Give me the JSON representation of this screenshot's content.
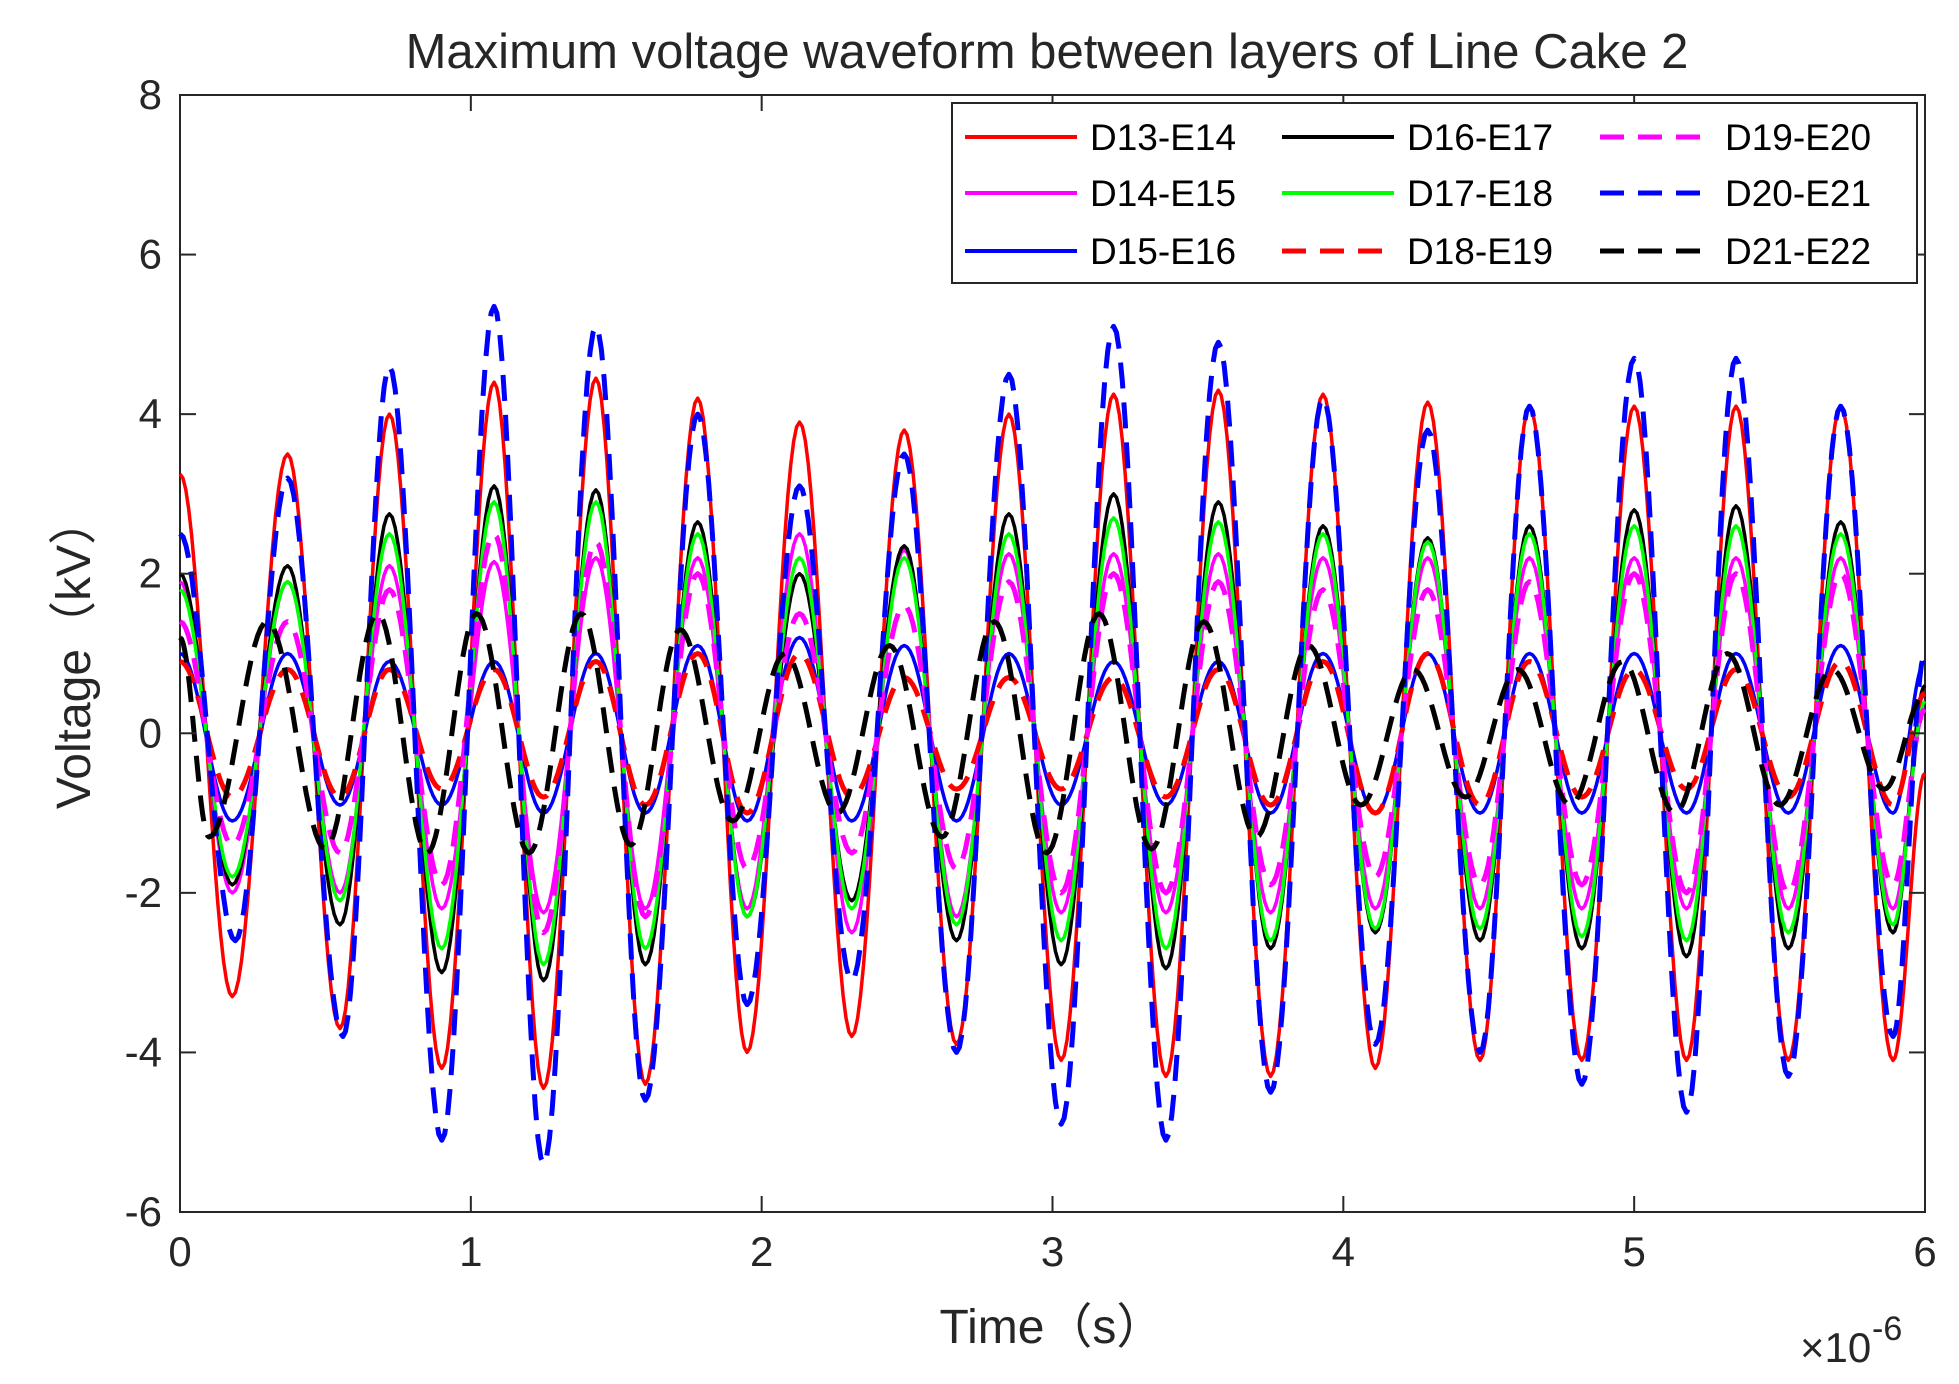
{
  "chart_data": {
    "type": "line",
    "title": "Maximum voltage waveform between layers of Line Cake 2",
    "xlabel": "Time（s）",
    "ylabel": "Voltage（kV）",
    "x_exponent_label": "×10",
    "x_exponent_power": "-6",
    "xlim": [
      0,
      6
    ],
    "ylim": [
      -6,
      8
    ],
    "xticks": [
      0,
      1,
      2,
      3,
      4,
      5,
      6
    ],
    "yticks": [
      -6,
      -4,
      -2,
      0,
      2,
      4,
      6,
      8
    ],
    "xtick_labels": [
      "0",
      "1",
      "2",
      "3",
      "4",
      "5",
      "6"
    ],
    "ytick_labels": [
      "-6",
      "-4",
      "-2",
      "0",
      "2",
      "4",
      "6",
      "8"
    ],
    "grid": false,
    "legend_position": "top-right",
    "legend_columns": 3,
    "series": [
      {
        "name": "D13-E14",
        "color": "#ff0000",
        "style": "solid",
        "x": [
          0,
          0.18,
          0.37,
          0.55,
          0.72,
          0.9,
          1.08,
          1.25,
          1.43,
          1.6,
          1.78,
          1.95,
          2.13,
          2.31,
          2.49,
          2.67,
          2.85,
          3.03,
          3.21,
          3.39,
          3.57,
          3.75,
          3.93,
          4.11,
          4.29,
          4.47,
          4.64,
          4.82,
          5.0,
          5.18,
          5.35,
          5.53,
          5.71,
          5.89,
          6.0
        ],
        "values": [
          3.25,
          -3.3,
          3.5,
          -3.7,
          4.0,
          -4.2,
          4.4,
          -4.45,
          4.45,
          -4.4,
          4.2,
          -4.0,
          3.9,
          -3.8,
          3.8,
          -3.9,
          4.0,
          -4.1,
          4.25,
          -4.3,
          4.3,
          -4.3,
          4.25,
          -4.2,
          4.15,
          -4.1,
          4.1,
          -4.1,
          4.1,
          -4.1,
          4.1,
          -4.1,
          4.1,
          -4.1,
          -0.5
        ]
      },
      {
        "name": "D14-E15",
        "color": "#ff00ff",
        "style": "solid",
        "x": [
          0,
          0.18,
          0.37,
          0.55,
          0.72,
          0.9,
          1.08,
          1.25,
          1.43,
          1.6,
          1.78,
          1.95,
          2.13,
          2.31,
          2.49,
          2.67,
          2.85,
          3.03,
          3.21,
          3.39,
          3.57,
          3.75,
          3.93,
          4.11,
          4.29,
          4.47,
          4.64,
          4.82,
          5.0,
          5.18,
          5.35,
          5.53,
          5.71,
          5.89,
          6.0
        ],
        "values": [
          1.9,
          -2.0,
          1.9,
          -2.0,
          2.1,
          -2.2,
          2.15,
          -2.25,
          2.2,
          -2.2,
          2.2,
          -2.2,
          2.5,
          -2.5,
          2.3,
          -2.3,
          2.25,
          -2.25,
          2.25,
          -2.25,
          2.25,
          -2.25,
          2.2,
          -2.2,
          2.2,
          -2.2,
          2.2,
          -2.2,
          2.2,
          -2.2,
          2.2,
          -2.2,
          2.2,
          -2.2,
          0.3
        ]
      },
      {
        "name": "D15-E16",
        "color": "#0000ff",
        "style": "solid",
        "x": [
          0,
          0.18,
          0.37,
          0.55,
          0.72,
          0.9,
          1.08,
          1.25,
          1.43,
          1.6,
          1.78,
          1.95,
          2.13,
          2.31,
          2.49,
          2.67,
          2.85,
          3.03,
          3.21,
          3.39,
          3.57,
          3.75,
          3.93,
          4.11,
          4.29,
          4.47,
          4.64,
          4.82,
          5.0,
          5.18,
          5.35,
          5.53,
          5.71,
          5.89,
          6.0
        ],
        "values": [
          1.0,
          -1.1,
          1.0,
          -0.9,
          0.9,
          -0.9,
          0.9,
          -1.0,
          1.0,
          -1.0,
          1.1,
          -1.1,
          1.2,
          -1.1,
          1.1,
          -1.1,
          1.0,
          -0.9,
          0.9,
          -0.9,
          0.9,
          -1.0,
          1.0,
          -1.0,
          1.0,
          -1.0,
          1.0,
          -1.0,
          1.0,
          -1.0,
          1.0,
          -1.0,
          1.1,
          -1.0,
          0.9
        ]
      },
      {
        "name": "D16-E17",
        "color": "#000000",
        "style": "solid",
        "x": [
          0,
          0.18,
          0.37,
          0.55,
          0.72,
          0.9,
          1.08,
          1.25,
          1.43,
          1.6,
          1.78,
          1.95,
          2.13,
          2.31,
          2.49,
          2.67,
          2.85,
          3.03,
          3.21,
          3.39,
          3.57,
          3.75,
          3.93,
          4.11,
          4.29,
          4.47,
          4.64,
          4.82,
          5.0,
          5.18,
          5.35,
          5.53,
          5.71,
          5.89,
          6.0
        ],
        "values": [
          2.0,
          -1.9,
          2.1,
          -2.4,
          2.75,
          -3.0,
          3.1,
          -3.1,
          3.05,
          -2.9,
          2.65,
          -2.3,
          2.0,
          -2.1,
          2.35,
          -2.6,
          2.75,
          -2.9,
          3.0,
          -2.95,
          2.9,
          -2.7,
          2.6,
          -2.5,
          2.45,
          -2.6,
          2.6,
          -2.7,
          2.8,
          -2.8,
          2.85,
          -2.7,
          2.65,
          -2.5,
          0.6
        ]
      },
      {
        "name": "D17-E18",
        "color": "#00ff00",
        "style": "solid",
        "x": [
          0,
          0.18,
          0.37,
          0.55,
          0.72,
          0.9,
          1.08,
          1.25,
          1.43,
          1.6,
          1.78,
          1.95,
          2.13,
          2.31,
          2.49,
          2.67,
          2.85,
          3.03,
          3.21,
          3.39,
          3.57,
          3.75,
          3.93,
          4.11,
          4.29,
          4.47,
          4.64,
          4.82,
          5.0,
          5.18,
          5.35,
          5.53,
          5.71,
          5.89,
          6.0
        ],
        "values": [
          1.8,
          -1.8,
          1.9,
          -2.1,
          2.5,
          -2.7,
          2.9,
          -2.9,
          2.9,
          -2.7,
          2.5,
          -2.3,
          2.2,
          -2.2,
          2.2,
          -2.4,
          2.5,
          -2.6,
          2.7,
          -2.7,
          2.65,
          -2.6,
          2.5,
          -2.45,
          2.4,
          -2.45,
          2.5,
          -2.55,
          2.6,
          -2.6,
          2.6,
          -2.5,
          2.5,
          -2.4,
          0.4
        ]
      },
      {
        "name": "D18-E19",
        "color": "#ff0000",
        "style": "dashed",
        "x": [
          0,
          0.18,
          0.37,
          0.55,
          0.72,
          0.9,
          1.08,
          1.25,
          1.43,
          1.6,
          1.78,
          1.95,
          2.13,
          2.31,
          2.49,
          2.67,
          2.85,
          3.03,
          3.21,
          3.39,
          3.57,
          3.75,
          3.93,
          4.11,
          4.29,
          4.47,
          4.64,
          4.82,
          5.0,
          5.18,
          5.35,
          5.53,
          5.71,
          5.89,
          6.0
        ],
        "values": [
          0.9,
          -0.8,
          0.8,
          -0.8,
          0.8,
          -0.7,
          0.8,
          -0.8,
          0.9,
          -0.9,
          1.0,
          -1.0,
          1.0,
          -0.8,
          0.7,
          -0.7,
          0.7,
          -0.7,
          0.7,
          -0.8,
          0.8,
          -0.9,
          0.9,
          -1.0,
          1.0,
          -0.9,
          0.9,
          -0.8,
          0.8,
          -0.7,
          0.8,
          -0.8,
          0.9,
          -0.9,
          0.5
        ]
      },
      {
        "name": "D19-E20",
        "color": "#ff00ff",
        "style": "dashed",
        "x": [
          0,
          0.18,
          0.37,
          0.55,
          0.72,
          0.9,
          1.08,
          1.25,
          1.43,
          1.6,
          1.78,
          1.95,
          2.13,
          2.31,
          2.49,
          2.67,
          2.85,
          3.03,
          3.21,
          3.39,
          3.57,
          3.75,
          3.93,
          4.11,
          4.29,
          4.47,
          4.64,
          4.82,
          5.0,
          5.18,
          5.35,
          5.53,
          5.71,
          5.89,
          6.0
        ],
        "values": [
          1.4,
          -1.4,
          1.4,
          -1.5,
          1.8,
          -1.9,
          2.5,
          -2.5,
          2.4,
          -2.3,
          2.0,
          -1.7,
          1.5,
          -1.5,
          1.6,
          -1.7,
          1.9,
          -2.0,
          2.0,
          -2.0,
          1.9,
          -1.9,
          1.8,
          -1.8,
          1.8,
          -1.9,
          1.9,
          -1.9,
          2.0,
          -2.0,
          2.0,
          -2.0,
          2.0,
          -1.9,
          0.3
        ]
      },
      {
        "name": "D20-E21",
        "color": "#0000ff",
        "style": "dashed",
        "x": [
          0,
          0.19,
          0.37,
          0.56,
          0.72,
          0.9,
          1.08,
          1.25,
          1.43,
          1.6,
          1.78,
          1.95,
          2.13,
          2.31,
          2.49,
          2.67,
          2.85,
          3.03,
          3.21,
          3.39,
          3.57,
          3.75,
          3.93,
          4.11,
          4.29,
          4.47,
          4.64,
          4.82,
          5.0,
          5.18,
          5.35,
          5.53,
          5.71,
          5.89,
          6.0
        ],
        "values": [
          2.5,
          -2.6,
          3.2,
          -3.8,
          4.6,
          -5.1,
          5.35,
          -5.4,
          5.1,
          -4.6,
          4.0,
          -3.4,
          3.1,
          -3.1,
          3.5,
          -4.0,
          4.5,
          -4.9,
          5.1,
          -5.1,
          4.9,
          -4.5,
          4.2,
          -3.9,
          3.8,
          -4.0,
          4.1,
          -4.4,
          4.7,
          -4.75,
          4.7,
          -4.3,
          4.1,
          -3.8,
          1.0
        ]
      },
      {
        "name": "D21-E22",
        "color": "#000000",
        "style": "dashed",
        "x": [
          0,
          0.1,
          0.3,
          0.5,
          0.68,
          0.85,
          1.02,
          1.2,
          1.38,
          1.55,
          1.72,
          1.9,
          2.08,
          2.26,
          2.44,
          2.62,
          2.8,
          2.98,
          3.16,
          3.34,
          3.52,
          3.7,
          3.88,
          4.06,
          4.24,
          4.42,
          4.6,
          4.78,
          4.96,
          5.14,
          5.32,
          5.5,
          5.68,
          5.86,
          6.0
        ],
        "values": [
          1.2,
          -1.3,
          1.4,
          -1.45,
          1.5,
          -1.5,
          1.5,
          -1.5,
          1.5,
          -1.4,
          1.3,
          -1.1,
          1.0,
          -1.0,
          1.1,
          -1.3,
          1.4,
          -1.5,
          1.5,
          -1.45,
          1.4,
          -1.3,
          1.1,
          -0.9,
          0.8,
          -0.8,
          0.8,
          -0.9,
          0.9,
          -1.0,
          1.0,
          -0.9,
          0.8,
          -0.7,
          0.5
        ]
      }
    ]
  }
}
